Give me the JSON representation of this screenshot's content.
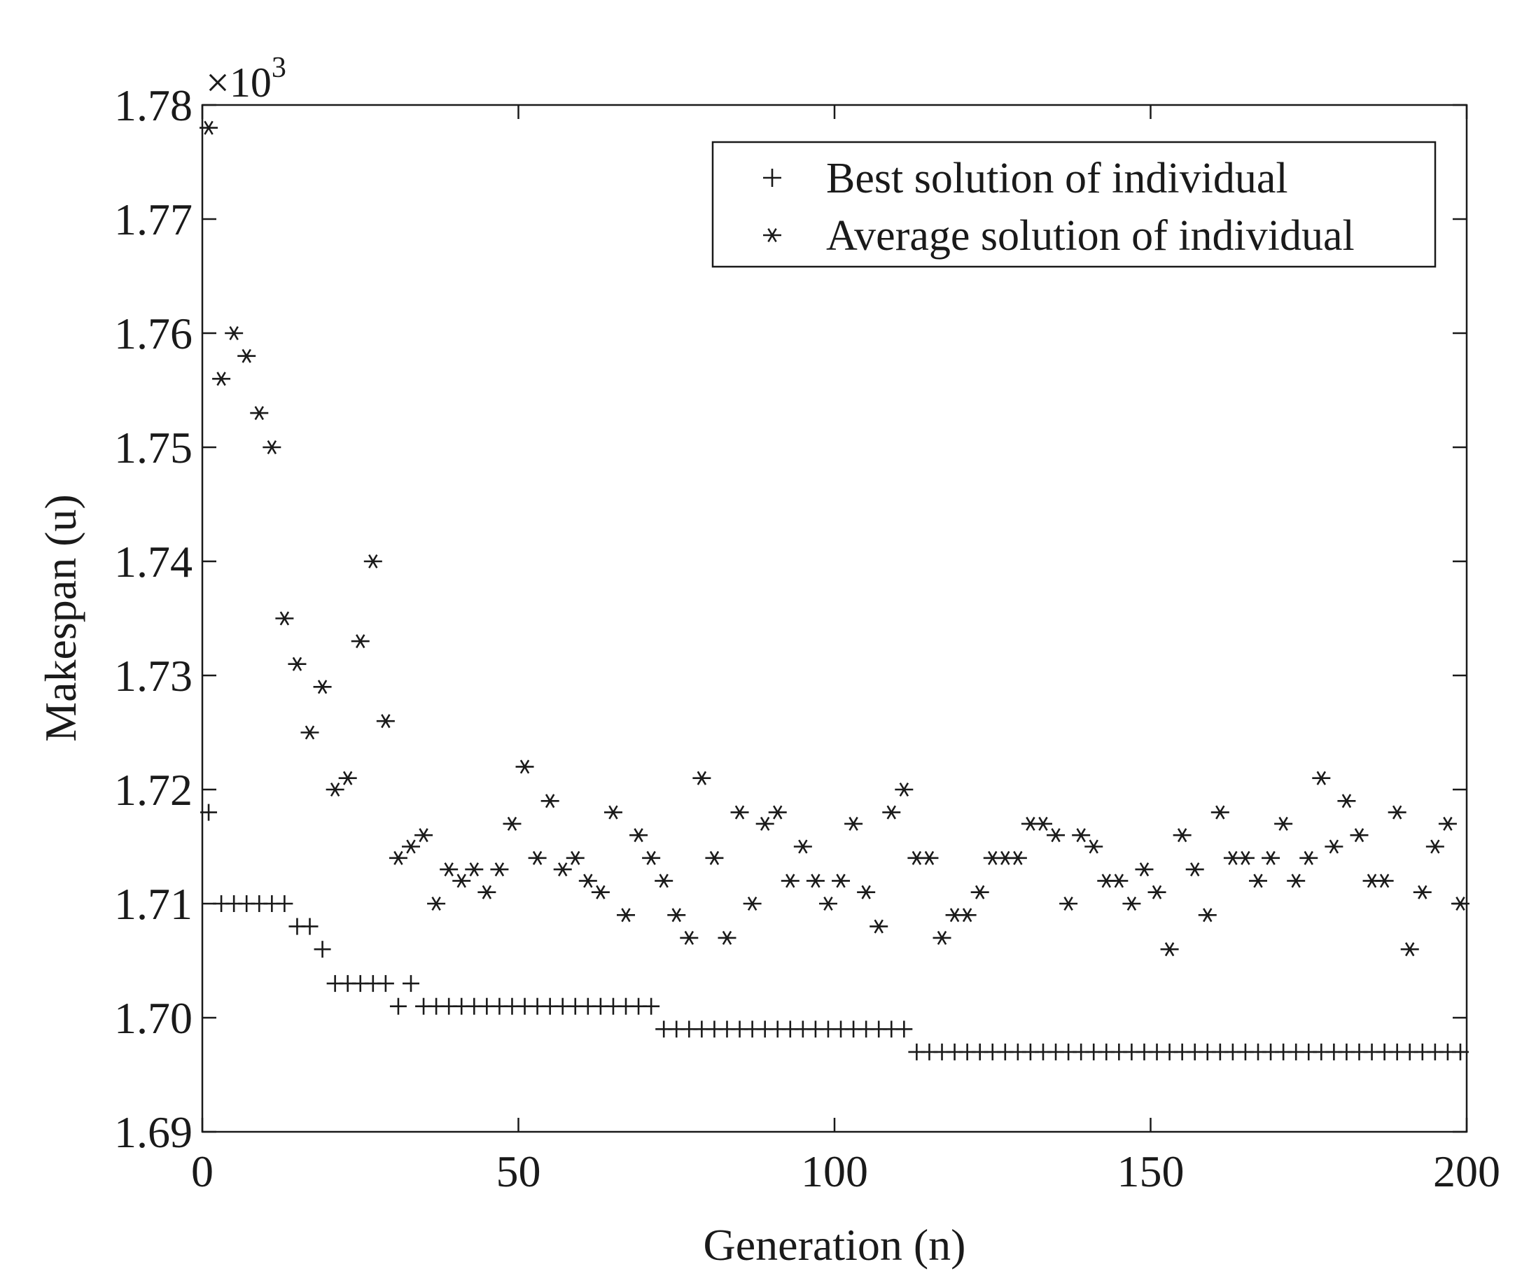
{
  "chart_data": {
    "type": "scatter",
    "title": "",
    "xlabel": "Generation (n)",
    "ylabel": "Makespan (u)",
    "xlim": [
      0,
      200
    ],
    "ylim": [
      1.69,
      1.78
    ],
    "x_ticks": [
      0,
      50,
      100,
      150,
      200
    ],
    "x_tick_labels": [
      "0",
      "50",
      "100",
      "150",
      "200"
    ],
    "y_ticks": [
      1.69,
      1.7,
      1.71,
      1.72,
      1.73,
      1.74,
      1.75,
      1.76,
      1.77,
      1.78
    ],
    "y_tick_labels": [
      "1.69",
      "1.70",
      "1.71",
      "1.72",
      "1.73",
      "1.74",
      "1.75",
      "1.76",
      "1.77",
      "1.78"
    ],
    "y_exponent_prefix": "×10",
    "y_exponent_power": "3",
    "legend_position": "top-right",
    "grid": false,
    "color": "#1a1a1a",
    "series": [
      {
        "name": "Best solution of individual",
        "marker": "plus",
        "points": [
          [
            1,
            1.718
          ],
          [
            3,
            1.71
          ],
          [
            5,
            1.71
          ],
          [
            7,
            1.71
          ],
          [
            9,
            1.71
          ],
          [
            11,
            1.71
          ],
          [
            13,
            1.71
          ],
          [
            15,
            1.708
          ],
          [
            17,
            1.708
          ],
          [
            19,
            1.706
          ],
          [
            21,
            1.703
          ],
          [
            23,
            1.703
          ],
          [
            25,
            1.703
          ],
          [
            27,
            1.703
          ],
          [
            29,
            1.703
          ],
          [
            31,
            1.701
          ],
          [
            33,
            1.703
          ],
          [
            35,
            1.701
          ],
          [
            37,
            1.701
          ],
          [
            39,
            1.701
          ],
          [
            41,
            1.701
          ],
          [
            43,
            1.701
          ],
          [
            45,
            1.701
          ],
          [
            47,
            1.701
          ],
          [
            49,
            1.701
          ],
          [
            51,
            1.701
          ],
          [
            53,
            1.701
          ],
          [
            55,
            1.701
          ],
          [
            57,
            1.701
          ],
          [
            59,
            1.701
          ],
          [
            61,
            1.701
          ],
          [
            63,
            1.701
          ],
          [
            65,
            1.701
          ],
          [
            67,
            1.701
          ],
          [
            69,
            1.701
          ],
          [
            71,
            1.701
          ],
          [
            73,
            1.699
          ],
          [
            75,
            1.699
          ],
          [
            77,
            1.699
          ],
          [
            79,
            1.699
          ],
          [
            81,
            1.699
          ],
          [
            83,
            1.699
          ],
          [
            85,
            1.699
          ],
          [
            87,
            1.699
          ],
          [
            89,
            1.699
          ],
          [
            91,
            1.699
          ],
          [
            93,
            1.699
          ],
          [
            95,
            1.699
          ],
          [
            97,
            1.699
          ],
          [
            99,
            1.699
          ],
          [
            101,
            1.699
          ],
          [
            103,
            1.699
          ],
          [
            105,
            1.699
          ],
          [
            107,
            1.699
          ],
          [
            109,
            1.699
          ],
          [
            111,
            1.699
          ],
          [
            113,
            1.697
          ],
          [
            115,
            1.697
          ],
          [
            117,
            1.697
          ],
          [
            119,
            1.697
          ],
          [
            121,
            1.697
          ],
          [
            123,
            1.697
          ],
          [
            125,
            1.697
          ],
          [
            127,
            1.697
          ],
          [
            129,
            1.697
          ],
          [
            131,
            1.697
          ],
          [
            133,
            1.697
          ],
          [
            135,
            1.697
          ],
          [
            137,
            1.697
          ],
          [
            139,
            1.697
          ],
          [
            141,
            1.697
          ],
          [
            143,
            1.697
          ],
          [
            145,
            1.697
          ],
          [
            147,
            1.697
          ],
          [
            149,
            1.697
          ],
          [
            151,
            1.697
          ],
          [
            153,
            1.697
          ],
          [
            155,
            1.697
          ],
          [
            157,
            1.697
          ],
          [
            159,
            1.697
          ],
          [
            161,
            1.697
          ],
          [
            163,
            1.697
          ],
          [
            165,
            1.697
          ],
          [
            167,
            1.697
          ],
          [
            169,
            1.697
          ],
          [
            171,
            1.697
          ],
          [
            173,
            1.697
          ],
          [
            175,
            1.697
          ],
          [
            177,
            1.697
          ],
          [
            179,
            1.697
          ],
          [
            181,
            1.697
          ],
          [
            183,
            1.697
          ],
          [
            185,
            1.697
          ],
          [
            187,
            1.697
          ],
          [
            189,
            1.697
          ],
          [
            191,
            1.697
          ],
          [
            193,
            1.697
          ],
          [
            195,
            1.697
          ],
          [
            197,
            1.697
          ],
          [
            199,
            1.697
          ]
        ]
      },
      {
        "name": "Average solution of individual",
        "marker": "asterisk",
        "points": [
          [
            1,
            1.778
          ],
          [
            3,
            1.756
          ],
          [
            5,
            1.76
          ],
          [
            7,
            1.758
          ],
          [
            9,
            1.753
          ],
          [
            11,
            1.75
          ],
          [
            13,
            1.735
          ],
          [
            15,
            1.731
          ],
          [
            17,
            1.725
          ],
          [
            19,
            1.729
          ],
          [
            21,
            1.72
          ],
          [
            23,
            1.721
          ],
          [
            25,
            1.733
          ],
          [
            27,
            1.74
          ],
          [
            29,
            1.726
          ],
          [
            31,
            1.714
          ],
          [
            33,
            1.715
          ],
          [
            35,
            1.716
          ],
          [
            37,
            1.71
          ],
          [
            39,
            1.713
          ],
          [
            41,
            1.712
          ],
          [
            43,
            1.713
          ],
          [
            45,
            1.711
          ],
          [
            47,
            1.713
          ],
          [
            49,
            1.717
          ],
          [
            51,
            1.722
          ],
          [
            53,
            1.714
          ],
          [
            55,
            1.719
          ],
          [
            57,
            1.713
          ],
          [
            59,
            1.714
          ],
          [
            61,
            1.712
          ],
          [
            63,
            1.711
          ],
          [
            65,
            1.718
          ],
          [
            67,
            1.709
          ],
          [
            69,
            1.716
          ],
          [
            71,
            1.714
          ],
          [
            73,
            1.712
          ],
          [
            75,
            1.709
          ],
          [
            77,
            1.707
          ],
          [
            79,
            1.721
          ],
          [
            81,
            1.714
          ],
          [
            83,
            1.707
          ],
          [
            85,
            1.718
          ],
          [
            87,
            1.71
          ],
          [
            89,
            1.717
          ],
          [
            91,
            1.718
          ],
          [
            93,
            1.712
          ],
          [
            95,
            1.715
          ],
          [
            97,
            1.712
          ],
          [
            99,
            1.71
          ],
          [
            101,
            1.712
          ],
          [
            103,
            1.717
          ],
          [
            105,
            1.711
          ],
          [
            107,
            1.708
          ],
          [
            109,
            1.718
          ],
          [
            111,
            1.72
          ],
          [
            113,
            1.714
          ],
          [
            115,
            1.714
          ],
          [
            117,
            1.707
          ],
          [
            119,
            1.709
          ],
          [
            121,
            1.709
          ],
          [
            123,
            1.711
          ],
          [
            125,
            1.714
          ],
          [
            127,
            1.714
          ],
          [
            129,
            1.714
          ],
          [
            131,
            1.717
          ],
          [
            133,
            1.717
          ],
          [
            135,
            1.716
          ],
          [
            137,
            1.71
          ],
          [
            139,
            1.716
          ],
          [
            141,
            1.715
          ],
          [
            143,
            1.712
          ],
          [
            145,
            1.712
          ],
          [
            147,
            1.71
          ],
          [
            149,
            1.713
          ],
          [
            151,
            1.711
          ],
          [
            153,
            1.706
          ],
          [
            155,
            1.716
          ],
          [
            157,
            1.713
          ],
          [
            159,
            1.709
          ],
          [
            161,
            1.718
          ],
          [
            163,
            1.714
          ],
          [
            165,
            1.714
          ],
          [
            167,
            1.712
          ],
          [
            169,
            1.714
          ],
          [
            171,
            1.717
          ],
          [
            173,
            1.712
          ],
          [
            175,
            1.714
          ],
          [
            177,
            1.721
          ],
          [
            179,
            1.715
          ],
          [
            181,
            1.719
          ],
          [
            183,
            1.716
          ],
          [
            185,
            1.712
          ],
          [
            187,
            1.712
          ],
          [
            189,
            1.718
          ],
          [
            191,
            1.706
          ],
          [
            193,
            1.711
          ],
          [
            195,
            1.715
          ],
          [
            197,
            1.717
          ],
          [
            199,
            1.71
          ]
        ]
      }
    ]
  }
}
